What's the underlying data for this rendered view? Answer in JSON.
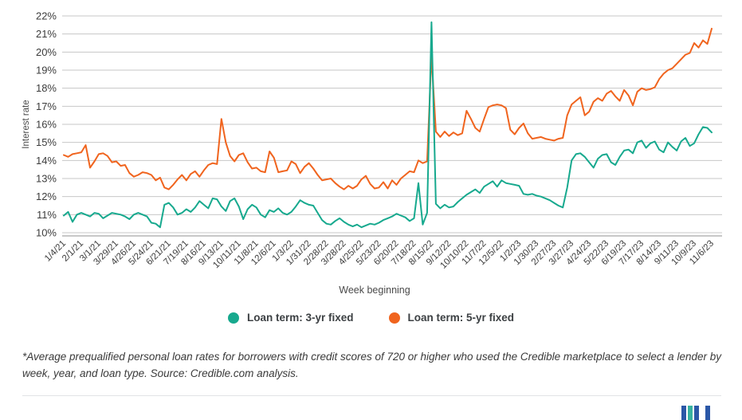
{
  "chart_data": {
    "type": "line",
    "title": "",
    "xlabel": "Week beginning",
    "ylabel": "Interest rate",
    "ylim": [
      10,
      22
    ],
    "grid": "horizontal",
    "legend_position": "bottom",
    "y_tick_labels": [
      "22%",
      "21%",
      "20%",
      "19%",
      "18%",
      "17%",
      "16%",
      "15%",
      "14%",
      "13%",
      "12%",
      "11%",
      "10%"
    ],
    "x_tick_every": 4,
    "x_tick_labels": [
      "1/4/21",
      "2/1/21",
      "3/1/21",
      "3/29/21",
      "4/26/21",
      "5/24/21",
      "6/21/21",
      "7/19/21",
      "8/16/21",
      "9/13/21",
      "10/11/21",
      "11/8/21",
      "12/6/21",
      "1/3/22",
      "1/31/22",
      "2/28/22",
      "3/28/22",
      "4/25/22",
      "5/23/22",
      "6/20/22",
      "7/18/22",
      "8/15/22",
      "9/12/22",
      "10/10/22",
      "11/7/22",
      "12/5/22",
      "1/2/23",
      "1/30/23",
      "2/27/23",
      "3/27/23",
      "4/24/23",
      "5/22/23",
      "6/19/23",
      "7/17/23",
      "8/14/23",
      "9/11/23",
      "10/9/23",
      "11/6/23"
    ],
    "series": [
      {
        "name": "Loan term: 3-yr fixed",
        "color": "#17a98e",
        "values": [
          10.95,
          11.15,
          10.6,
          11.0,
          11.1,
          11.0,
          10.9,
          11.1,
          11.05,
          10.8,
          10.95,
          11.1,
          11.05,
          11.0,
          10.9,
          10.75,
          11.0,
          11.1,
          11.0,
          10.9,
          10.55,
          10.5,
          10.3,
          11.55,
          11.65,
          11.4,
          11.0,
          11.1,
          11.3,
          11.15,
          11.4,
          11.75,
          11.55,
          11.35,
          11.9,
          11.85,
          11.45,
          11.2,
          11.75,
          11.9,
          11.45,
          10.75,
          11.3,
          11.55,
          11.4,
          11.0,
          10.85,
          11.25,
          11.15,
          11.35,
          11.1,
          11.0,
          11.15,
          11.45,
          11.8,
          11.65,
          11.55,
          11.5,
          11.1,
          10.7,
          10.5,
          10.45,
          10.65,
          10.8,
          10.6,
          10.45,
          10.35,
          10.45,
          10.3,
          10.4,
          10.5,
          10.45,
          10.55,
          10.7,
          10.8,
          10.9,
          11.05,
          10.95,
          10.85,
          10.65,
          10.8,
          12.75,
          10.45,
          11.1,
          21.65,
          11.6,
          11.35,
          11.55,
          11.4,
          11.45,
          11.7,
          11.9,
          12.1,
          12.25,
          12.4,
          12.2,
          12.55,
          12.7,
          12.85,
          12.55,
          12.9,
          12.75,
          12.7,
          12.65,
          12.6,
          12.15,
          12.1,
          12.15,
          12.05,
          12.0,
          11.9,
          11.8,
          11.65,
          11.5,
          11.4,
          12.5,
          14.0,
          14.35,
          14.4,
          14.2,
          13.9,
          13.6,
          14.1,
          14.3,
          14.35,
          13.9,
          13.75,
          14.2,
          14.55,
          14.6,
          14.4,
          15.0,
          15.1,
          14.7,
          14.95,
          15.05,
          14.6,
          14.45,
          15.0,
          14.75,
          14.55,
          15.05,
          15.25,
          14.8,
          14.95,
          15.45,
          15.85,
          15.8,
          15.55
        ]
      },
      {
        "name": "Loan term: 5-yr fixed",
        "color": "#f0641e",
        "values": [
          14.3,
          14.2,
          14.35,
          14.4,
          14.45,
          14.85,
          13.6,
          13.95,
          14.35,
          14.4,
          14.25,
          13.9,
          13.95,
          13.7,
          13.75,
          13.3,
          13.1,
          13.2,
          13.35,
          13.3,
          13.2,
          12.9,
          13.05,
          12.5,
          12.4,
          12.65,
          12.95,
          13.2,
          12.9,
          13.25,
          13.4,
          13.1,
          13.45,
          13.75,
          13.85,
          13.8,
          16.3,
          15.0,
          14.25,
          13.95,
          14.3,
          14.4,
          13.9,
          13.55,
          13.6,
          13.4,
          13.35,
          14.5,
          14.15,
          13.35,
          13.4,
          13.45,
          13.95,
          13.8,
          13.3,
          13.65,
          13.85,
          13.55,
          13.2,
          12.9,
          12.95,
          13.0,
          12.75,
          12.55,
          12.4,
          12.6,
          12.45,
          12.6,
          12.95,
          13.15,
          12.7,
          12.45,
          12.5,
          12.8,
          12.45,
          12.9,
          12.65,
          13.0,
          13.2,
          13.4,
          13.35,
          14.0,
          13.85,
          13.95,
          19.8,
          15.6,
          15.3,
          15.6,
          15.35,
          15.55,
          15.4,
          15.5,
          16.75,
          16.3,
          15.8,
          15.6,
          16.3,
          16.95,
          17.05,
          17.1,
          17.05,
          16.9,
          15.7,
          15.45,
          15.8,
          16.05,
          15.5,
          15.2,
          15.25,
          15.3,
          15.2,
          15.15,
          15.1,
          15.2,
          15.25,
          16.5,
          17.1,
          17.3,
          17.5,
          16.5,
          16.7,
          17.25,
          17.45,
          17.3,
          17.7,
          17.85,
          17.55,
          17.3,
          17.9,
          17.6,
          17.05,
          17.8,
          18.0,
          17.9,
          17.95,
          18.05,
          18.5,
          18.8,
          19.0,
          19.1,
          19.35,
          19.6,
          19.85,
          19.95,
          20.5,
          20.25,
          20.65,
          20.45,
          21.3
        ]
      }
    ]
  },
  "footnote": {
    "text": "*Average prequalified personal loan rates for borrowers with credit scores of 720 or higher who used the Credible marketplace to select a lender by week, year, and loan type. Source: Credible.com analysis."
  },
  "branding": {
    "logo_bar_colors": [
      "#2b57a7",
      "#38b2a0",
      "#2b57a7",
      "#2b57a7"
    ]
  },
  "style_colors": {
    "gridline": "#c7c7c7",
    "axis_line": "#a8a8a8",
    "tick_text": "#3c3c3c"
  }
}
